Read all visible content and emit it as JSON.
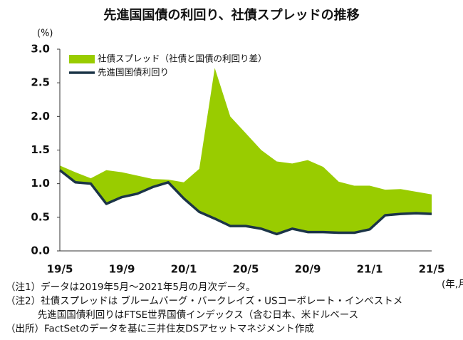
{
  "chart_data": {
    "type": "combo",
    "title": "先進国国債の利回り、社債スプレッドの推移",
    "y_unit": "(%)",
    "x_unit": "(年,月)",
    "categories": [
      "19/5",
      null,
      null,
      null,
      "19/9",
      null,
      null,
      null,
      "20/1",
      null,
      null,
      null,
      "20/5",
      null,
      null,
      null,
      "20/9",
      null,
      null,
      null,
      "21/1",
      null,
      null,
      null,
      "21/5"
    ],
    "series": [
      {
        "name": "社債スプレッド（社債と国債の利回り差）",
        "color": "#99cc00",
        "kind": "area",
        "stacked": true,
        "values": [
          0.07,
          0.15,
          0.08,
          0.5,
          0.37,
          0.27,
          0.12,
          0.04,
          0.24,
          0.64,
          2.24,
          1.63,
          1.38,
          1.17,
          1.08,
          0.97,
          1.07,
          0.97,
          0.76,
          0.7,
          0.65,
          0.38,
          0.37,
          0.32,
          0.29
        ]
      },
      {
        "name": "先進国国債利回り",
        "color": "#1b3447",
        "kind": "line",
        "values": [
          1.2,
          1.02,
          1.0,
          0.7,
          0.8,
          0.85,
          0.95,
          1.02,
          0.78,
          0.58,
          0.48,
          0.37,
          0.37,
          0.33,
          0.25,
          0.33,
          0.28,
          0.28,
          0.27,
          0.27,
          0.32,
          0.53,
          0.55,
          0.56,
          0.55
        ]
      }
    ],
    "ylim": [
      0,
      3
    ],
    "yticks": [
      {
        "value": 0,
        "label": "0.0"
      },
      0.5,
      {
        "value": 1,
        "label": "1.0"
      },
      1.5,
      {
        "value": 2,
        "label": "2.0"
      },
      2.5,
      {
        "value": 3,
        "label": "3.0"
      }
    ],
    "legend": "upper left",
    "notes": [
      "（注1）データは2019年5月～2021年5月の月次データ。",
      "（注2）社債スプレッドは ブルームバーグ・バークレイズ・USコーポレート・インベストメ",
      "　　　 先進国国債利回りはFTSE世界国債インデックス（含む日本、米ドルベース",
      "（出所）FactSetのデータを基に三井住友DSアセットマネジメント作成"
    ]
  }
}
